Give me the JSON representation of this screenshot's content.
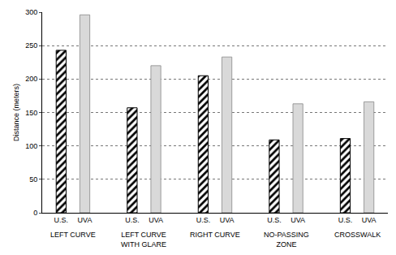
{
  "chart_data": {
    "type": "bar",
    "categories": [
      "LEFT CURVE",
      "LEFT CURVE\nWITH GLARE",
      "RIGHT CURVE",
      "NO-PASSING\nZONE",
      "CROSSWALK"
    ],
    "series": [
      {
        "name": "U.S.",
        "color": "#000000",
        "marker": "hatch",
        "values": [
          243,
          157,
          205,
          109,
          111
        ]
      },
      {
        "name": "UVA",
        "color": "#d9d9d9",
        "values": [
          296,
          220,
          233,
          163,
          166
        ]
      }
    ],
    "y_label": "Distance (meters)",
    "ylim": [
      0,
      300
    ],
    "yticks": [
      0,
      50,
      100,
      150,
      200,
      250,
      300
    ],
    "grid": true
  }
}
